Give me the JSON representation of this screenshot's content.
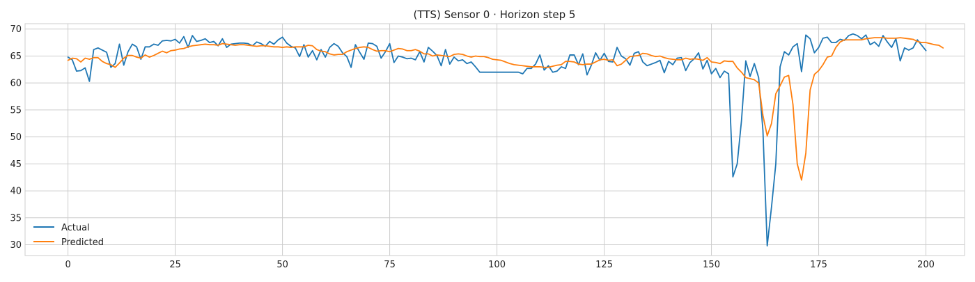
{
  "chart_data": {
    "type": "line",
    "title": "(TTS) Sensor 0 · Horizon step 5",
    "xlabel": "",
    "ylabel": "",
    "xlim": [
      -10,
      209
    ],
    "ylim": [
      28,
      71
    ],
    "xticks": [
      0,
      25,
      50,
      75,
      100,
      125,
      150,
      175,
      200
    ],
    "yticks": [
      30,
      35,
      40,
      45,
      50,
      55,
      60,
      65,
      70
    ],
    "grid": true,
    "legend_position": "lower-left",
    "series": [
      {
        "name": "Actual",
        "color": "#1f77b4",
        "values": [
          64.8,
          64.3,
          62.2,
          62.3,
          62.8,
          60.3,
          66.2,
          66.5,
          66.1,
          65.7,
          62.9,
          63.6,
          67.2,
          63.3,
          65.8,
          67.2,
          66.7,
          64.4,
          66.7,
          66.7,
          67.2,
          67.0,
          67.8,
          67.9,
          67.8,
          68.1,
          67.4,
          68.6,
          66.6,
          68.8,
          67.7,
          67.9,
          68.2,
          67.5,
          67.7,
          66.9,
          68.2,
          66.6,
          67.2,
          67.3,
          67.4,
          67.4,
          67.3,
          66.9,
          67.6,
          67.3,
          66.8,
          67.7,
          67.2,
          68.0,
          68.5,
          67.4,
          66.8,
          66.5,
          64.9,
          67.1,
          64.8,
          66.0,
          64.3,
          66.2,
          64.8,
          66.6,
          67.3,
          66.8,
          65.6,
          64.9,
          62.9,
          67.1,
          65.7,
          64.4,
          67.4,
          67.3,
          66.8,
          64.6,
          65.8,
          67.3,
          63.8,
          65.0,
          64.8,
          64.5,
          64.6,
          64.3,
          65.8,
          63.9,
          66.6,
          65.9,
          65.1,
          63.2,
          66.2,
          63.5,
          64.8,
          64.1,
          64.3,
          63.6,
          63.9,
          63.0,
          62.0,
          62.0,
          62.0,
          62.0,
          62.0,
          62.0,
          62.0,
          62.0,
          62.0,
          62.0,
          61.7,
          62.7,
          62.7,
          63.5,
          65.2,
          62.4,
          63.2,
          62.0,
          62.2,
          63.0,
          62.7,
          65.2,
          65.2,
          63.4,
          65.4,
          61.5,
          63.3,
          65.6,
          64.2,
          65.5,
          64.0,
          63.9,
          66.6,
          65.0,
          64.5,
          63.3,
          65.5,
          65.8,
          63.9,
          63.2,
          63.5,
          63.8,
          64.2,
          61.9,
          64.0,
          63.4,
          64.6,
          64.7,
          62.3,
          63.8,
          64.5,
          65.6,
          62.6,
          64.2,
          61.7,
          62.7,
          61.0,
          62.2,
          61.7,
          42.6,
          45.0,
          53.0,
          64.1,
          61.2,
          63.6,
          61.0,
          51.2,
          29.8,
          37.0,
          45.0,
          63.0,
          65.8,
          65.2,
          66.7,
          67.3,
          62.1,
          68.9,
          68.2,
          65.6,
          66.6,
          68.3,
          68.5,
          67.5,
          67.5,
          68.1,
          67.9,
          68.8,
          69.1,
          68.8,
          68.2,
          68.9,
          67.1,
          67.6,
          66.8,
          68.8,
          67.6,
          66.6,
          68.2,
          64.1,
          66.5,
          66.1,
          66.5,
          68.0,
          67.0,
          66.0
        ]
      },
      {
        "name": "Predicted",
        "color": "#ff7f0e",
        "values": [
          64.2,
          64.6,
          64.5,
          63.9,
          64.6,
          64.4,
          64.7,
          64.7,
          64.0,
          63.6,
          63.4,
          62.9,
          63.7,
          64.6,
          65.1,
          65.1,
          64.8,
          64.6,
          65.2,
          64.8,
          65.1,
          65.5,
          65.9,
          65.6,
          66.0,
          66.1,
          66.3,
          66.4,
          66.7,
          66.9,
          67.0,
          67.1,
          67.2,
          67.1,
          67.1,
          67.0,
          67.3,
          67.2,
          67.1,
          67.0,
          67.1,
          67.1,
          67.0,
          66.9,
          66.8,
          66.9,
          66.9,
          66.8,
          66.7,
          66.7,
          66.6,
          66.7,
          66.6,
          66.7,
          66.7,
          66.7,
          67.0,
          66.9,
          66.2,
          65.9,
          65.8,
          65.4,
          65.2,
          65.3,
          65.3,
          65.8,
          66.1,
          66.4,
          66.6,
          66.7,
          66.6,
          66.2,
          65.9,
          66.0,
          66.0,
          65.8,
          66.1,
          66.4,
          66.3,
          66.0,
          66.0,
          66.2,
          65.9,
          65.4,
          65.4,
          65.0,
          65.2,
          65.1,
          65.0,
          64.9,
          65.3,
          65.4,
          65.3,
          65.0,
          64.8,
          65.0,
          64.9,
          64.9,
          64.7,
          64.4,
          64.3,
          64.2,
          63.9,
          63.6,
          63.4,
          63.3,
          63.2,
          63.1,
          63.0,
          63.0,
          63.0,
          62.9,
          62.9,
          63.1,
          63.3,
          63.4,
          64.0,
          64.0,
          63.9,
          63.5,
          63.4,
          63.5,
          63.5,
          63.9,
          64.3,
          64.4,
          64.2,
          64.3,
          63.2,
          63.5,
          64.2,
          64.9,
          65.0,
          65.1,
          65.5,
          65.4,
          65.1,
          64.9,
          65.0,
          64.7,
          64.5,
          64.4,
          64.3,
          64.3,
          64.6,
          64.4,
          64.5,
          64.4,
          64.2,
          64.7,
          63.9,
          63.8,
          63.6,
          64.1,
          64.0,
          64.0,
          62.8,
          62.0,
          61.0,
          60.8,
          60.6,
          60.0,
          54.0,
          50.2,
          52.5,
          58.0,
          59.5,
          61.1,
          61.4,
          56.0,
          45.0,
          42.0,
          47.0,
          58.7,
          61.6,
          62.3,
          63.4,
          64.8,
          65.0,
          66.6,
          67.6,
          68.0,
          68.0,
          68.0,
          68.0,
          68.0,
          68.2,
          68.3,
          68.4,
          68.4,
          68.4,
          68.3,
          68.3,
          68.3,
          68.4,
          68.3,
          68.2,
          68.1,
          67.7,
          67.5,
          67.5,
          67.3,
          67.1,
          67.0,
          66.5
        ]
      }
    ]
  }
}
